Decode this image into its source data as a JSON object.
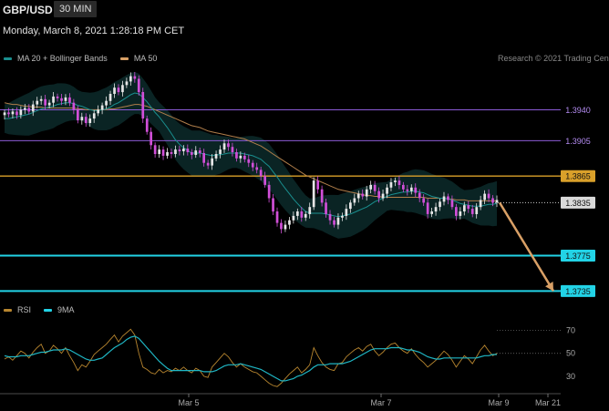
{
  "header": {
    "symbol": "GBP/USD",
    "timeframe": "30 MIN",
    "datetime": "Monday, March 8, 2021 1:28:18 PM CET",
    "credit": "Research © 2021 Trading Cen"
  },
  "legend_price": [
    {
      "label": "MA 20 + Bollinger Bands",
      "color": "#1a8f8f"
    },
    {
      "label": "MA 50",
      "color": "#d9a066"
    }
  ],
  "legend_rsi": [
    {
      "label": "RSI",
      "color": "#b8862f"
    },
    {
      "label": "9MA",
      "color": "#22d3e6"
    }
  ],
  "chart_data": [
    {
      "type": "candlestick",
      "title": "GBP/USD 30 MIN",
      "x_ticks": [
        "Mar 5",
        "Mar 7",
        "Mar 9",
        "Mar 21"
      ],
      "y_axis_labels": [
        "1.3940",
        "1.3905",
        "1.3865",
        "1.3835",
        "1.3775",
        "1.3735"
      ],
      "ylim": [
        1.3724,
        1.3992
      ],
      "levels": [
        {
          "value": 1.394,
          "label": "1.3940",
          "color": "#8b5bd6",
          "style": "thin"
        },
        {
          "value": 1.3905,
          "label": "1.3905",
          "color": "#8b5bd6",
          "style": "thin"
        },
        {
          "value": 1.3865,
          "label": "1.3865",
          "color": "#d9a02a",
          "style": "medium"
        },
        {
          "value": 1.3835,
          "label": "1.3835",
          "color": "#cccccc",
          "style": "dotted"
        },
        {
          "value": 1.3775,
          "label": "1.3775",
          "color": "#22d3e6",
          "style": "thick"
        },
        {
          "value": 1.3735,
          "label": "1.3735",
          "color": "#22d3e6",
          "style": "thick"
        }
      ],
      "arrow": {
        "from": 1.3835,
        "to": 1.3735,
        "color": "#d9a066"
      },
      "close_series": [
        1.3937,
        1.3935,
        1.3938,
        1.3934,
        1.394,
        1.3942,
        1.3938,
        1.3946,
        1.395,
        1.3952,
        1.3945,
        1.3948,
        1.3955,
        1.3953,
        1.395,
        1.3954,
        1.3948,
        1.394,
        1.3928,
        1.3932,
        1.3925,
        1.393,
        1.3936,
        1.394,
        1.3945,
        1.395,
        1.3958,
        1.3965,
        1.396,
        1.3968,
        1.3972,
        1.3978,
        1.3975,
        1.396,
        1.393,
        1.3915,
        1.39,
        1.389,
        1.3895,
        1.3888,
        1.3892,
        1.389,
        1.3895,
        1.3893,
        1.3896,
        1.3892,
        1.3889,
        1.3894,
        1.3891,
        1.388,
        1.3877,
        1.3885,
        1.389,
        1.3895,
        1.3902,
        1.3898,
        1.3892,
        1.3885,
        1.3888,
        1.3884,
        1.388,
        1.3875,
        1.3872,
        1.3865,
        1.3855,
        1.384,
        1.3825,
        1.3812,
        1.3805,
        1.381,
        1.3815,
        1.382,
        1.3825,
        1.3818,
        1.3822,
        1.383,
        1.386,
        1.385,
        1.3835,
        1.3822,
        1.3815,
        1.381,
        1.3818,
        1.382,
        1.3828,
        1.3835,
        1.384,
        1.3845,
        1.3842,
        1.385,
        1.3855,
        1.3848,
        1.384,
        1.3845,
        1.3852,
        1.3858,
        1.386,
        1.3855,
        1.385,
        1.3848,
        1.3852,
        1.3846,
        1.384,
        1.3835,
        1.3822,
        1.3825,
        1.383,
        1.3836,
        1.3842,
        1.3838,
        1.383,
        1.382,
        1.3825,
        1.3832,
        1.3828,
        1.3822,
        1.383,
        1.3838,
        1.3845,
        1.384,
        1.3835,
        1.3838
      ],
      "ma20_series": [
        1.393,
        1.393,
        1.3931,
        1.3932,
        1.3933,
        1.3934,
        1.3935,
        1.3937,
        1.3939,
        1.3941,
        1.3942,
        1.3943,
        1.3944,
        1.3946,
        1.3947,
        1.3948,
        1.3948,
        1.3947,
        1.3945,
        1.3944,
        1.3942,
        1.394,
        1.3939,
        1.3939,
        1.394,
        1.3941,
        1.3943,
        1.3946,
        1.3948,
        1.3951,
        1.3954,
        1.3957,
        1.3959,
        1.3958,
        1.3954,
        1.3949,
        1.3943,
        1.3937,
        1.3932,
        1.3926,
        1.392,
        1.3913,
        1.3906,
        1.3901,
        1.3897,
        1.3894,
        1.3891,
        1.3891,
        1.3891,
        1.389,
        1.3889,
        1.3888,
        1.3889,
        1.3889,
        1.389,
        1.3891,
        1.3891,
        1.3891,
        1.3891,
        1.389,
        1.3889,
        1.3888,
        1.3886,
        1.3884,
        1.388,
        1.3876,
        1.387,
        1.3864,
        1.3857,
        1.3851,
        1.3845,
        1.3839,
        1.3834,
        1.3829,
        1.3825,
        1.3823,
        1.3823,
        1.3823,
        1.3823,
        1.3822,
        1.3821,
        1.382,
        1.3819,
        1.382,
        1.3821,
        1.3822,
        1.3824,
        1.3826,
        1.3828,
        1.383,
        1.3833,
        1.3836,
        1.3838,
        1.384,
        1.3842,
        1.3844,
        1.3845,
        1.3846,
        1.3847,
        1.3847,
        1.3848,
        1.3848,
        1.3847,
        1.3846,
        1.3844,
        1.3842,
        1.3841,
        1.384,
        1.384,
        1.3839,
        1.3838,
        1.3836,
        1.3834,
        1.3833,
        1.3832,
        1.3831,
        1.3831,
        1.3831,
        1.3832,
        1.3833,
        1.3833,
        1.3834
      ],
      "ma50_series": [
        1.3948,
        1.3947,
        1.3946,
        1.3946,
        1.3945,
        1.3944,
        1.3944,
        1.3943,
        1.3943,
        1.3943,
        1.3942,
        1.3942,
        1.3942,
        1.3942,
        1.3942,
        1.3942,
        1.3942,
        1.3942,
        1.3941,
        1.3941,
        1.394,
        1.394,
        1.394,
        1.394,
        1.394,
        1.394,
        1.3941,
        1.3941,
        1.3942,
        1.3943,
        1.3944,
        1.3945,
        1.3946,
        1.3946,
        1.3945,
        1.3944,
        1.3942,
        1.394,
        1.3938,
        1.3936,
        1.3934,
        1.3932,
        1.393,
        1.3928,
        1.3926,
        1.3924,
        1.3922,
        1.3921,
        1.392,
        1.3918,
        1.3916,
        1.3915,
        1.3914,
        1.3913,
        1.3912,
        1.3911,
        1.391,
        1.3909,
        1.3908,
        1.3907,
        1.3905,
        1.3903,
        1.3901,
        1.3899,
        1.3896,
        1.3893,
        1.389,
        1.3887,
        1.3884,
        1.3881,
        1.3878,
        1.3875,
        1.3872,
        1.3869,
        1.3866,
        1.3864,
        1.3862,
        1.386,
        1.3858,
        1.3856,
        1.3854,
        1.3852,
        1.385,
        1.3849,
        1.3848,
        1.3847,
        1.3846,
        1.3845,
        1.3844,
        1.3843,
        1.3843,
        1.3842,
        1.3842,
        1.3841,
        1.3841,
        1.3841,
        1.3841,
        1.3841,
        1.3841,
        1.3841,
        1.3841,
        1.3841,
        1.3841,
        1.3841,
        1.384,
        1.384,
        1.384,
        1.384,
        1.384,
        1.3839,
        1.3839,
        1.3838,
        1.3838,
        1.3838,
        1.3837,
        1.3837,
        1.3837,
        1.3837,
        1.3837,
        1.3837,
        1.3837,
        1.3837
      ]
    },
    {
      "type": "line",
      "title": "RSI",
      "y_ticks": [
        70,
        50,
        30
      ],
      "ylim": [
        18,
        80
      ],
      "rsi_series": [
        45,
        47,
        44,
        48,
        52,
        50,
        46,
        51,
        55,
        58,
        50,
        52,
        57,
        54,
        50,
        55,
        48,
        42,
        35,
        40,
        38,
        43,
        49,
        52,
        55,
        58,
        62,
        66,
        60,
        65,
        68,
        71,
        66,
        50,
        38,
        36,
        33,
        32,
        36,
        33,
        35,
        34,
        37,
        35,
        38,
        35,
        33,
        37,
        35,
        30,
        29,
        38,
        42,
        46,
        50,
        47,
        42,
        38,
        41,
        38,
        36,
        34,
        33,
        30,
        27,
        24,
        22,
        21,
        24,
        28,
        32,
        35,
        38,
        33,
        36,
        40,
        55,
        48,
        42,
        38,
        36,
        35,
        41,
        42,
        47,
        50,
        53,
        55,
        52,
        56,
        58,
        52,
        48,
        51,
        55,
        58,
        59,
        55,
        52,
        50,
        54,
        49,
        45,
        42,
        38,
        41,
        44,
        48,
        52,
        49,
        44,
        38,
        43,
        48,
        45,
        41,
        47,
        53,
        57,
        52,
        48,
        50
      ],
      "ma9_series": [
        48,
        47,
        47,
        47,
        48,
        48,
        48,
        49,
        50,
        51,
        51,
        52,
        53,
        53,
        53,
        54,
        53,
        51,
        49,
        47,
        45,
        44,
        44,
        45,
        46,
        49,
        52,
        55,
        57,
        59,
        62,
        64,
        65,
        63,
        59,
        55,
        51,
        47,
        43,
        40,
        37,
        35,
        35,
        35,
        35,
        35,
        35,
        35,
        35,
        34,
        34,
        34,
        35,
        37,
        39,
        40,
        40,
        40,
        41,
        40,
        39,
        38,
        37,
        36,
        34,
        32,
        30,
        28,
        26,
        26,
        27,
        28,
        30,
        31,
        33,
        35,
        38,
        40,
        40,
        40,
        41,
        41,
        41,
        41,
        42,
        43,
        45,
        47,
        49,
        51,
        53,
        54,
        54,
        54,
        54,
        55,
        55,
        55,
        54,
        53,
        53,
        52,
        51,
        49,
        47,
        46,
        45,
        45,
        46,
        46,
        46,
        46,
        46,
        46,
        46,
        46,
        46,
        47,
        48,
        48,
        49,
        49
      ]
    }
  ]
}
